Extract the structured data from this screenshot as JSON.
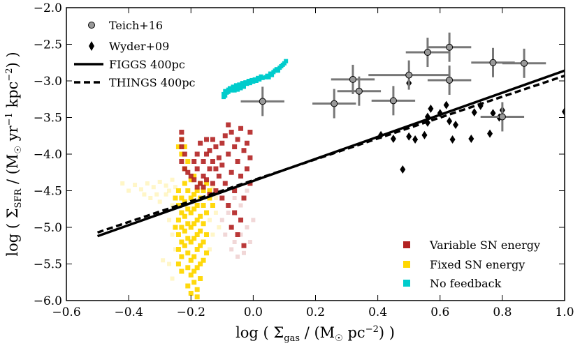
{
  "chart_data": {
    "type": "scatter",
    "title": "",
    "xlabel": "log ( Σgas / (M☉ pc⁻²) )",
    "ylabel": "log ( ΣSFR / (M☉ yr⁻¹ kpc⁻²) )",
    "xlabel_parts": [
      "log ( Σ",
      "gas",
      " / (M",
      "☉",
      " pc",
      "−2",
      ") )"
    ],
    "ylabel_parts": [
      "log ( Σ",
      "SFR",
      " / (M",
      "☉",
      " yr",
      "−1",
      " kpc",
      "−2",
      ") )"
    ],
    "xlim": [
      -0.6,
      1.0
    ],
    "ylim": [
      -6.0,
      -2.0
    ],
    "xticks": [
      -0.6,
      -0.4,
      -0.2,
      0.0,
      0.2,
      0.4,
      0.6,
      0.8,
      1.0
    ],
    "xtick_labels": [
      "−0.6",
      "−0.4",
      "−0.2",
      "0.0",
      "0.2",
      "0.4",
      "0.6",
      "0.8",
      "1.0"
    ],
    "yticks": [
      -2.0,
      -2.5,
      -3.0,
      -3.5,
      -4.0,
      -4.5,
      -5.0,
      -5.5,
      -6.0
    ],
    "ytick_labels": [
      "−2.0",
      "−2.5",
      "−3.0",
      "−3.5",
      "−4.0",
      "−4.5",
      "−5.0",
      "−5.5",
      "−6.0"
    ],
    "grid": false,
    "legend_top_left": {
      "entries": [
        {
          "label": "Teich+16",
          "marker": "circle"
        },
        {
          "label": "Wyder+09",
          "marker": "diamond"
        },
        {
          "label": "FIGGS 400pc",
          "marker": "solid-line"
        },
        {
          "label": "THINGS 400pc",
          "marker": "dashed-line"
        }
      ]
    },
    "legend_bottom_right": {
      "entries": [
        {
          "label": "Variable SN energy",
          "color": "#b22222"
        },
        {
          "label": "Fixed SN energy",
          "color": "#ffd700"
        },
        {
          "label": "No feedback",
          "color": "#00cccc"
        }
      ]
    },
    "fit_lines": [
      {
        "name": "FIGGS 400pc",
        "style": "solid",
        "x": [
          -0.5,
          1.0
        ],
        "y": [
          -5.12,
          -2.86
        ]
      },
      {
        "name": "THINGS 400pc",
        "style": "dashed",
        "x": [
          -0.5,
          1.0
        ],
        "y": [
          -5.07,
          -2.93
        ]
      }
    ],
    "teich16": {
      "name": "Teich+16",
      "color": "#999999",
      "points": [
        {
          "x": 0.03,
          "y": -3.28,
          "xerr": 0.07,
          "yerr": 0.2
        },
        {
          "x": 0.26,
          "y": -3.31,
          "xerr": 0.07,
          "yerr": 0.2
        },
        {
          "x": 0.32,
          "y": -2.98,
          "xerr": 0.07,
          "yerr": 0.2
        },
        {
          "x": 0.34,
          "y": -3.14,
          "xerr": 0.07,
          "yerr": 0.2
        },
        {
          "x": 0.45,
          "y": -3.27,
          "xerr": 0.07,
          "yerr": 0.2
        },
        {
          "x": 0.5,
          "y": -2.92,
          "xerr": 0.13,
          "yerr": 0.2
        },
        {
          "x": 0.56,
          "y": -2.61,
          "xerr": 0.07,
          "yerr": 0.2
        },
        {
          "x": 0.63,
          "y": -2.54,
          "xerr": 0.07,
          "yerr": 0.2
        },
        {
          "x": 0.63,
          "y": -2.99,
          "xerr": 0.07,
          "yerr": 0.2
        },
        {
          "x": 0.77,
          "y": -2.75,
          "xerr": 0.07,
          "yerr": 0.2
        },
        {
          "x": 0.87,
          "y": -2.76,
          "xerr": 0.07,
          "yerr": 0.2
        },
        {
          "x": 0.8,
          "y": -3.49,
          "xerr": 0.07,
          "yerr": 0.2
        }
      ]
    },
    "wyder09": {
      "name": "Wyder+09",
      "color": "#000000",
      "points": [
        {
          "x": 0.41,
          "y": -3.74
        },
        {
          "x": 0.45,
          "y": -3.79
        },
        {
          "x": 0.48,
          "y": -4.21
        },
        {
          "x": 0.5,
          "y": -3.76
        },
        {
          "x": 0.5,
          "y": -3.03
        },
        {
          "x": 0.52,
          "y": -3.8
        },
        {
          "x": 0.55,
          "y": -3.74
        },
        {
          "x": 0.56,
          "y": -3.49
        },
        {
          "x": 0.56,
          "y": -3.57
        },
        {
          "x": 0.57,
          "y": -3.38
        },
        {
          "x": 0.6,
          "y": -3.44
        },
        {
          "x": 0.62,
          "y": -3.33
        },
        {
          "x": 0.63,
          "y": -3.55
        },
        {
          "x": 0.64,
          "y": -3.8
        },
        {
          "x": 0.65,
          "y": -3.6
        },
        {
          "x": 0.7,
          "y": -3.79
        },
        {
          "x": 0.71,
          "y": -3.43
        },
        {
          "x": 0.73,
          "y": -3.34
        },
        {
          "x": 0.76,
          "y": -3.72
        },
        {
          "x": 0.77,
          "y": -3.44
        },
        {
          "x": 0.8,
          "y": -3.4
        },
        {
          "x": 0.79,
          "y": -3.5
        },
        {
          "x": 1.0,
          "y": -3.42
        }
      ]
    },
    "no_feedback": {
      "name": "No feedback",
      "color": "#00cccc",
      "points": [
        [
          -0.095,
          -3.22
        ],
        [
          -0.095,
          -3.18
        ],
        [
          -0.09,
          -3.14
        ],
        [
          -0.085,
          -3.16
        ],
        [
          -0.08,
          -3.12
        ],
        [
          -0.075,
          -3.1
        ],
        [
          -0.07,
          -3.13
        ],
        [
          -0.065,
          -3.08
        ],
        [
          -0.06,
          -3.1
        ],
        [
          -0.055,
          -3.06
        ],
        [
          -0.05,
          -3.09
        ],
        [
          -0.045,
          -3.05
        ],
        [
          -0.04,
          -3.07
        ],
        [
          -0.035,
          -3.03
        ],
        [
          -0.03,
          -3.06
        ],
        [
          -0.025,
          -3.02
        ],
        [
          -0.02,
          -3.04
        ],
        [
          -0.015,
          -3.0
        ],
        [
          -0.01,
          -3.03
        ],
        [
          -0.005,
          -2.99
        ],
        [
          0.0,
          -3.01
        ],
        [
          0.005,
          -2.98
        ],
        [
          0.01,
          -3.0
        ],
        [
          0.015,
          -2.96
        ],
        [
          0.02,
          -2.98
        ],
        [
          0.025,
          -2.94
        ],
        [
          0.03,
          -2.96
        ],
        [
          0.04,
          -2.95
        ],
        [
          0.045,
          -2.93
        ],
        [
          0.05,
          -2.95
        ],
        [
          0.055,
          -2.9
        ],
        [
          0.06,
          -2.92
        ],
        [
          0.065,
          -2.88
        ],
        [
          0.07,
          -2.86
        ],
        [
          0.075,
          -2.84
        ],
        [
          0.08,
          -2.86
        ],
        [
          0.085,
          -2.82
        ],
        [
          0.09,
          -2.8
        ],
        [
          0.095,
          -2.78
        ],
        [
          0.1,
          -2.76
        ],
        [
          0.105,
          -2.73
        ],
        [
          -0.09,
          -3.2
        ],
        [
          -0.08,
          -3.15
        ],
        [
          -0.07,
          -3.11
        ],
        [
          -0.06,
          -3.13
        ],
        [
          -0.05,
          -3.12
        ],
        [
          -0.04,
          -3.1
        ],
        [
          -0.03,
          -3.08
        ]
      ]
    },
    "variable_sn": {
      "name": "Variable SN energy",
      "color": "#b22222",
      "points": [
        [
          -0.23,
          -3.7
        ],
        [
          -0.23,
          -3.8
        ],
        [
          -0.23,
          -3.9
        ],
        [
          -0.22,
          -4.0
        ],
        [
          -0.23,
          -4.1
        ],
        [
          -0.22,
          -4.2
        ],
        [
          -0.2,
          -4.3
        ],
        [
          -0.19,
          -4.1
        ],
        [
          -0.18,
          -4.2
        ],
        [
          -0.18,
          -4.0
        ],
        [
          -0.17,
          -3.85
        ],
        [
          -0.16,
          -4.1
        ],
        [
          -0.16,
          -4.3
        ],
        [
          -0.15,
          -4.0
        ],
        [
          -0.15,
          -3.8
        ],
        [
          -0.14,
          -4.2
        ],
        [
          -0.14,
          -3.95
        ],
        [
          -0.13,
          -4.1
        ],
        [
          -0.13,
          -4.4
        ],
        [
          -0.12,
          -4.2
        ],
        [
          -0.12,
          -3.9
        ],
        [
          -0.11,
          -4.05
        ],
        [
          -0.11,
          -4.3
        ],
        [
          -0.1,
          -3.85
        ],
        [
          -0.1,
          -4.15
        ],
        [
          -0.09,
          -3.75
        ],
        [
          -0.09,
          -4.4
        ],
        [
          -0.08,
          -3.6
        ],
        [
          -0.08,
          -4.0
        ],
        [
          -0.07,
          -3.7
        ],
        [
          -0.07,
          -4.25
        ],
        [
          -0.06,
          -3.9
        ],
        [
          -0.06,
          -4.5
        ],
        [
          -0.05,
          -3.8
        ],
        [
          -0.05,
          -4.1
        ],
        [
          -0.04,
          -3.65
        ],
        [
          -0.04,
          -4.3
        ],
        [
          -0.03,
          -3.95
        ],
        [
          -0.03,
          -4.6
        ],
        [
          -0.02,
          -4.2
        ],
        [
          -0.02,
          -3.85
        ],
        [
          -0.01,
          -4.4
        ],
        [
          -0.01,
          -4.05
        ],
        [
          -0.16,
          -4.45
        ],
        [
          -0.14,
          -4.55
        ],
        [
          -0.19,
          -4.35
        ],
        [
          -0.21,
          -4.25
        ],
        [
          -0.17,
          -4.4
        ],
        [
          -0.12,
          -4.5
        ],
        [
          -0.1,
          -4.6
        ],
        [
          -0.08,
          -4.7
        ],
        [
          -0.06,
          -4.8
        ],
        [
          -0.04,
          -4.9
        ],
        [
          -0.05,
          -5.1
        ],
        [
          -0.03,
          -5.25
        ],
        [
          -0.07,
          -5.0
        ],
        [
          -0.01,
          -3.7
        ],
        [
          -0.13,
          -3.8
        ],
        [
          -0.15,
          -4.35
        ],
        [
          -0.18,
          -4.45
        ]
      ]
    },
    "fixed_sn": {
      "name": "Fixed SN energy",
      "color": "#ffd700",
      "points": [
        [
          -0.24,
          -4.5
        ],
        [
          -0.24,
          -4.7
        ],
        [
          -0.24,
          -4.9
        ],
        [
          -0.24,
          -5.1
        ],
        [
          -0.24,
          -5.3
        ],
        [
          -0.23,
          -4.6
        ],
        [
          -0.23,
          -4.8
        ],
        [
          -0.23,
          -5.0
        ],
        [
          -0.23,
          -5.2
        ],
        [
          -0.23,
          -5.4
        ],
        [
          -0.22,
          -4.4
        ],
        [
          -0.22,
          -4.65
        ],
        [
          -0.22,
          -4.85
        ],
        [
          -0.22,
          -5.05
        ],
        [
          -0.22,
          -5.25
        ],
        [
          -0.21,
          -4.5
        ],
        [
          -0.21,
          -4.75
        ],
        [
          -0.21,
          -4.95
        ],
        [
          -0.21,
          -5.15
        ],
        [
          -0.21,
          -5.35
        ],
        [
          -0.2,
          -4.35
        ],
        [
          -0.2,
          -4.6
        ],
        [
          -0.2,
          -4.8
        ],
        [
          -0.2,
          -5.0
        ],
        [
          -0.2,
          -5.2
        ],
        [
          -0.2,
          -5.45
        ],
        [
          -0.19,
          -4.3
        ],
        [
          -0.19,
          -4.55
        ],
        [
          -0.19,
          -4.75
        ],
        [
          -0.19,
          -4.95
        ],
        [
          -0.19,
          -5.15
        ],
        [
          -0.19,
          -5.4
        ],
        [
          -0.18,
          -4.5
        ],
        [
          -0.18,
          -4.7
        ],
        [
          -0.18,
          -4.9
        ],
        [
          -0.18,
          -5.1
        ],
        [
          -0.18,
          -5.3
        ],
        [
          -0.18,
          -5.55
        ],
        [
          -0.17,
          -4.6
        ],
        [
          -0.17,
          -4.85
        ],
        [
          -0.17,
          -5.05
        ],
        [
          -0.17,
          -5.25
        ],
        [
          -0.17,
          -5.5
        ],
        [
          -0.16,
          -4.7
        ],
        [
          -0.16,
          -4.95
        ],
        [
          -0.16,
          -5.2
        ],
        [
          -0.16,
          -5.45
        ],
        [
          -0.15,
          -4.8
        ],
        [
          -0.15,
          -5.1
        ],
        [
          -0.15,
          -5.35
        ],
        [
          -0.2,
          -5.65
        ],
        [
          -0.19,
          -5.75
        ],
        [
          -0.18,
          -5.85
        ],
        [
          -0.18,
          -5.95
        ],
        [
          -0.19,
          -5.6
        ],
        [
          -0.21,
          -5.55
        ],
        [
          -0.23,
          -5.6
        ],
        [
          -0.22,
          -4.2
        ],
        [
          -0.21,
          -4.1
        ],
        [
          -0.23,
          -4.0
        ],
        [
          -0.24,
          -3.9
        ],
        [
          -0.23,
          -3.8
        ],
        [
          -0.22,
          -3.9
        ],
        [
          -0.14,
          -4.5
        ],
        [
          -0.13,
          -4.7
        ],
        [
          -0.14,
          -4.6
        ],
        [
          -0.15,
          -4.4
        ],
        [
          -0.16,
          -4.5
        ],
        [
          -0.17,
          -4.4
        ],
        [
          -0.25,
          -5.0
        ],
        [
          -0.25,
          -4.6
        ],
        [
          -0.24,
          -5.5
        ],
        [
          -0.2,
          -5.9
        ],
        [
          -0.21,
          -5.8
        ],
        [
          -0.17,
          -5.7
        ]
      ]
    },
    "fixed_sn_faint": {
      "name": "Fixed SN energy (faint)",
      "color": "#ffd700",
      "points": [
        [
          -0.42,
          -4.4
        ],
        [
          -0.4,
          -4.5
        ],
        [
          -0.38,
          -4.42
        ],
        [
          -0.36,
          -4.48
        ],
        [
          -0.34,
          -4.4
        ],
        [
          -0.32,
          -4.45
        ],
        [
          -0.3,
          -4.38
        ],
        [
          -0.28,
          -4.43
        ],
        [
          -0.27,
          -4.5
        ],
        [
          -0.26,
          -4.35
        ],
        [
          -0.25,
          -4.45
        ],
        [
          -0.33,
          -4.6
        ],
        [
          -0.3,
          -4.65
        ],
        [
          -0.28,
          -4.55
        ],
        [
          -0.26,
          -4.7
        ],
        [
          -0.27,
          -4.9
        ],
        [
          -0.26,
          -5.1
        ],
        [
          -0.25,
          -5.3
        ],
        [
          -0.27,
          -5.5
        ],
        [
          -0.26,
          -5.7
        ],
        [
          -0.29,
          -5.45
        ],
        [
          -0.31,
          -4.55
        ],
        [
          -0.35,
          -4.55
        ],
        [
          -0.14,
          -4.9
        ],
        [
          -0.13,
          -5.1
        ],
        [
          -0.12,
          -4.8
        ],
        [
          -0.11,
          -5.0
        ],
        [
          -0.14,
          -5.3
        ],
        [
          -0.13,
          -4.45
        ],
        [
          -0.12,
          -4.6
        ]
      ]
    },
    "variable_sn_faint": {
      "name": "Variable SN energy (faint)",
      "color": "#b22222",
      "points": [
        [
          -0.08,
          -4.8
        ],
        [
          -0.07,
          -5.0
        ],
        [
          -0.06,
          -5.2
        ],
        [
          -0.05,
          -5.4
        ],
        [
          -0.04,
          -5.1
        ],
        [
          -0.03,
          -5.35
        ],
        [
          -0.02,
          -5.0
        ],
        [
          -0.01,
          -5.2
        ],
        [
          -0.06,
          -4.6
        ],
        [
          -0.04,
          -4.7
        ],
        [
          -0.02,
          -4.5
        ],
        [
          0.0,
          -4.9
        ],
        [
          -0.09,
          -5.1
        ],
        [
          -0.1,
          -4.9
        ],
        [
          -0.07,
          -5.3
        ]
      ]
    }
  }
}
